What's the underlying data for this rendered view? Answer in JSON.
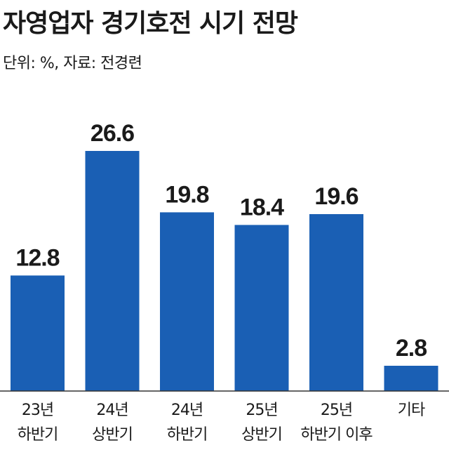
{
  "chart_data": {
    "type": "bar",
    "title": "자영업자 경기호전 시기 전망",
    "subtitle": "단위: %, 자료: 전경련",
    "categories": [
      [
        "23년",
        "하반기"
      ],
      [
        "24년",
        "상반기"
      ],
      [
        "24년",
        "하반기"
      ],
      [
        "25년",
        "상반기"
      ],
      [
        "25년",
        "하반기 이후"
      ],
      [
        "기타"
      ]
    ],
    "values": [
      12.8,
      26.6,
      19.8,
      18.4,
      19.6,
      2.8
    ],
    "value_labels": [
      "12.8",
      "26.6",
      "19.8",
      "18.4",
      "19.6",
      "2.8"
    ],
    "bar_color": "#1a5fb4",
    "ylim": [
      0,
      27
    ],
    "grid": false,
    "legend": "none"
  }
}
